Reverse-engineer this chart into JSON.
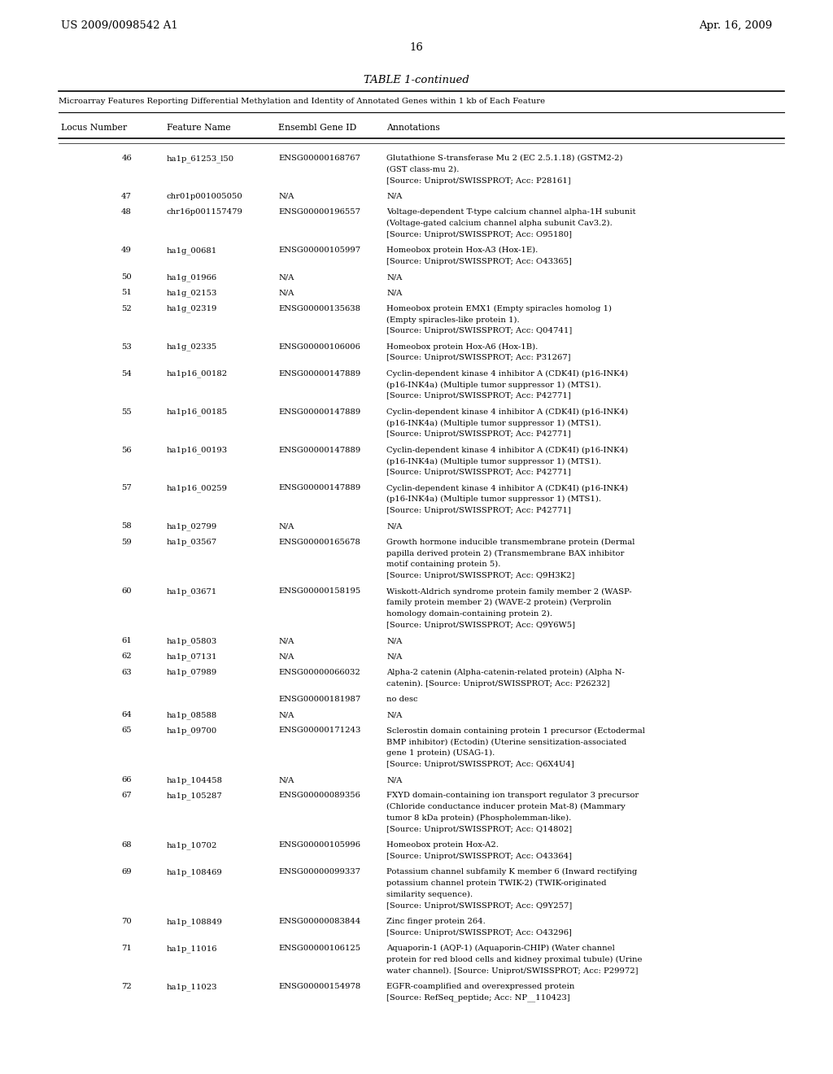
{
  "header_left": "US 2009/0098542 A1",
  "header_right": "Apr. 16, 2009",
  "page_number": "16",
  "table_title": "TABLE 1-continued",
  "subtitle": "Microarray Features Reporting Differential Methylation and Identity of Annotated Genes within 1 kb of Each Feature",
  "col_headers": [
    "Locus Number",
    "Feature Name",
    "Ensembl Gene ID",
    "Annotations"
  ],
  "rows": [
    {
      "locus": "46",
      "feature": "ha1p_61253_l50",
      "ensembl": "ENSG00000168767",
      "annotation": [
        "Glutathione S-transferase Mu 2 (EC 2.5.1.18) (GSTM2-2)",
        "(GST class-mu 2).",
        "[Source: Uniprot/SWISSPROT; Acc: P28161]"
      ]
    },
    {
      "locus": "47",
      "feature": "chr01p001005050",
      "ensembl": "N/A",
      "annotation": [
        "N/A"
      ]
    },
    {
      "locus": "48",
      "feature": "chr16p001157479",
      "ensembl": "ENSG00000196557",
      "annotation": [
        "Voltage-dependent T-type calcium channel alpha-1H subunit",
        "(Voltage-gated calcium channel alpha subunit Cav3.2).",
        "[Source: Uniprot/SWISSPROT; Acc: O95180]"
      ]
    },
    {
      "locus": "49",
      "feature": "ha1g_00681",
      "ensembl": "ENSG00000105997",
      "annotation": [
        "Homeobox protein Hox-A3 (Hox-1E).",
        "[Source: Uniprot/SWISSPROT; Acc: O43365]"
      ]
    },
    {
      "locus": "50",
      "feature": "ha1g_01966",
      "ensembl": "N/A",
      "annotation": [
        "N/A"
      ]
    },
    {
      "locus": "51",
      "feature": "ha1g_02153",
      "ensembl": "N/A",
      "annotation": [
        "N/A"
      ]
    },
    {
      "locus": "52",
      "feature": "ha1g_02319",
      "ensembl": "ENSG00000135638",
      "annotation": [
        "Homeobox protein EMX1 (Empty spiracles homolog 1)",
        "(Empty spiracles-like protein 1).",
        "[Source: Uniprot/SWISSPROT; Acc: Q04741]"
      ]
    },
    {
      "locus": "53",
      "feature": "ha1g_02335",
      "ensembl": "ENSG00000106006",
      "annotation": [
        "Homeobox protein Hox-A6 (Hox-1B).",
        "[Source: Uniprot/SWISSPROT; Acc: P31267]"
      ]
    },
    {
      "locus": "54",
      "feature": "ha1p16_00182",
      "ensembl": "ENSG00000147889",
      "annotation": [
        "Cyclin-dependent kinase 4 inhibitor A (CDK4I) (p16-INK4)",
        "(p16-INK4a) (Multiple tumor suppressor 1) (MTS1).",
        "[Source: Uniprot/SWISSPROT; Acc: P42771]"
      ]
    },
    {
      "locus": "55",
      "feature": "ha1p16_00185",
      "ensembl": "ENSG00000147889",
      "annotation": [
        "Cyclin-dependent kinase 4 inhibitor A (CDK4I) (p16-INK4)",
        "(p16-INK4a) (Multiple tumor suppressor 1) (MTS1).",
        "[Source: Uniprot/SWISSPROT; Acc: P42771]"
      ]
    },
    {
      "locus": "56",
      "feature": "ha1p16_00193",
      "ensembl": "ENSG00000147889",
      "annotation": [
        "Cyclin-dependent kinase 4 inhibitor A (CDK4I) (p16-INK4)",
        "(p16-INK4a) (Multiple tumor suppressor 1) (MTS1).",
        "[Source: Uniprot/SWISSPROT; Acc: P42771]"
      ]
    },
    {
      "locus": "57",
      "feature": "ha1p16_00259",
      "ensembl": "ENSG00000147889",
      "annotation": [
        "Cyclin-dependent kinase 4 inhibitor A (CDK4I) (p16-INK4)",
        "(p16-INK4a) (Multiple tumor suppressor 1) (MTS1).",
        "[Source: Uniprot/SWISSPROT; Acc: P42771]"
      ]
    },
    {
      "locus": "58",
      "feature": "ha1p_02799",
      "ensembl": "N/A",
      "annotation": [
        "N/A"
      ]
    },
    {
      "locus": "59",
      "feature": "ha1p_03567",
      "ensembl": "ENSG00000165678",
      "annotation": [
        "Growth hormone inducible transmembrane protein (Dermal",
        "papilla derived protein 2) (Transmembrane BAX inhibitor",
        "motif containing protein 5).",
        "[Source: Uniprot/SWISSPROT; Acc: Q9H3K2]"
      ]
    },
    {
      "locus": "60",
      "feature": "ha1p_03671",
      "ensembl": "ENSG00000158195",
      "annotation": [
        "Wiskott-Aldrich syndrome protein family member 2 (WASP-",
        "family protein member 2) (WAVE-2 protein) (Verprolin",
        "homology domain-containing protein 2).",
        "[Source: Uniprot/SWISSPROT; Acc: Q9Y6W5]"
      ]
    },
    {
      "locus": "61",
      "feature": "ha1p_05803",
      "ensembl": "N/A",
      "annotation": [
        "N/A"
      ]
    },
    {
      "locus": "62",
      "feature": "ha1p_07131",
      "ensembl": "N/A",
      "annotation": [
        "N/A"
      ]
    },
    {
      "locus": "63",
      "feature": "ha1p_07989",
      "ensembl": "ENSG00000066032",
      "annotation": [
        "Alpha-2 catenin (Alpha-catenin-related protein) (Alpha N-",
        "catenin). [Source: Uniprot/SWISSPROT; Acc: P26232]"
      ]
    },
    {
      "locus": "",
      "feature": "",
      "ensembl": "ENSG00000181987",
      "annotation": [
        "no desc"
      ]
    },
    {
      "locus": "64",
      "feature": "ha1p_08588",
      "ensembl": "N/A",
      "annotation": [
        "N/A"
      ]
    },
    {
      "locus": "65",
      "feature": "ha1p_09700",
      "ensembl": "ENSG00000171243",
      "annotation": [
        "Sclerostin domain containing protein 1 precursor (Ectodermal",
        "BMP inhibitor) (Ectodin) (Uterine sensitization-associated",
        "gene 1 protein) (USAG-1).",
        "[Source: Uniprot/SWISSPROT; Acc: Q6X4U4]"
      ]
    },
    {
      "locus": "66",
      "feature": "ha1p_104458",
      "ensembl": "N/A",
      "annotation": [
        "N/A"
      ]
    },
    {
      "locus": "67",
      "feature": "ha1p_105287",
      "ensembl": "ENSG00000089356",
      "annotation": [
        "FXYD domain-containing ion transport regulator 3 precursor",
        "(Chloride conductance inducer protein Mat-8) (Mammary",
        "tumor 8 kDa protein) (Phospholemman-like).",
        "[Source: Uniprot/SWISSPROT; Acc: Q14802]"
      ]
    },
    {
      "locus": "68",
      "feature": "ha1p_10702",
      "ensembl": "ENSG00000105996",
      "annotation": [
        "Homeobox protein Hox-A2.",
        "[Source: Uniprot/SWISSPROT; Acc: O43364]"
      ]
    },
    {
      "locus": "69",
      "feature": "ha1p_108469",
      "ensembl": "ENSG00000099337",
      "annotation": [
        "Potassium channel subfamily K member 6 (Inward rectifying",
        "potassium channel protein TWIK-2) (TWIK-originated",
        "similarity sequence).",
        "[Source: Uniprot/SWISSPROT; Acc: Q9Y257]"
      ]
    },
    {
      "locus": "70",
      "feature": "ha1p_108849",
      "ensembl": "ENSG00000083844",
      "annotation": [
        "Zinc finger protein 264.",
        "[Source: Uniprot/SWISSPROT; Acc: O43296]"
      ]
    },
    {
      "locus": "71",
      "feature": "ha1p_11016",
      "ensembl": "ENSG00000106125",
      "annotation": [
        "Aquaporin-1 (AQP-1) (Aquaporin-CHIP) (Water channel",
        "protein for red blood cells and kidney proximal tubule) (Urine",
        "water channel). [Source: Uniprot/SWISSPROT; Acc: P29972]"
      ]
    },
    {
      "locus": "72",
      "feature": "ha1p_11023",
      "ensembl": "ENSG00000154978",
      "annotation": [
        "EGFR-coamplified and overexpressed protein",
        "[Source: RefSeq_peptide; Acc: NP__110423]"
      ]
    }
  ]
}
